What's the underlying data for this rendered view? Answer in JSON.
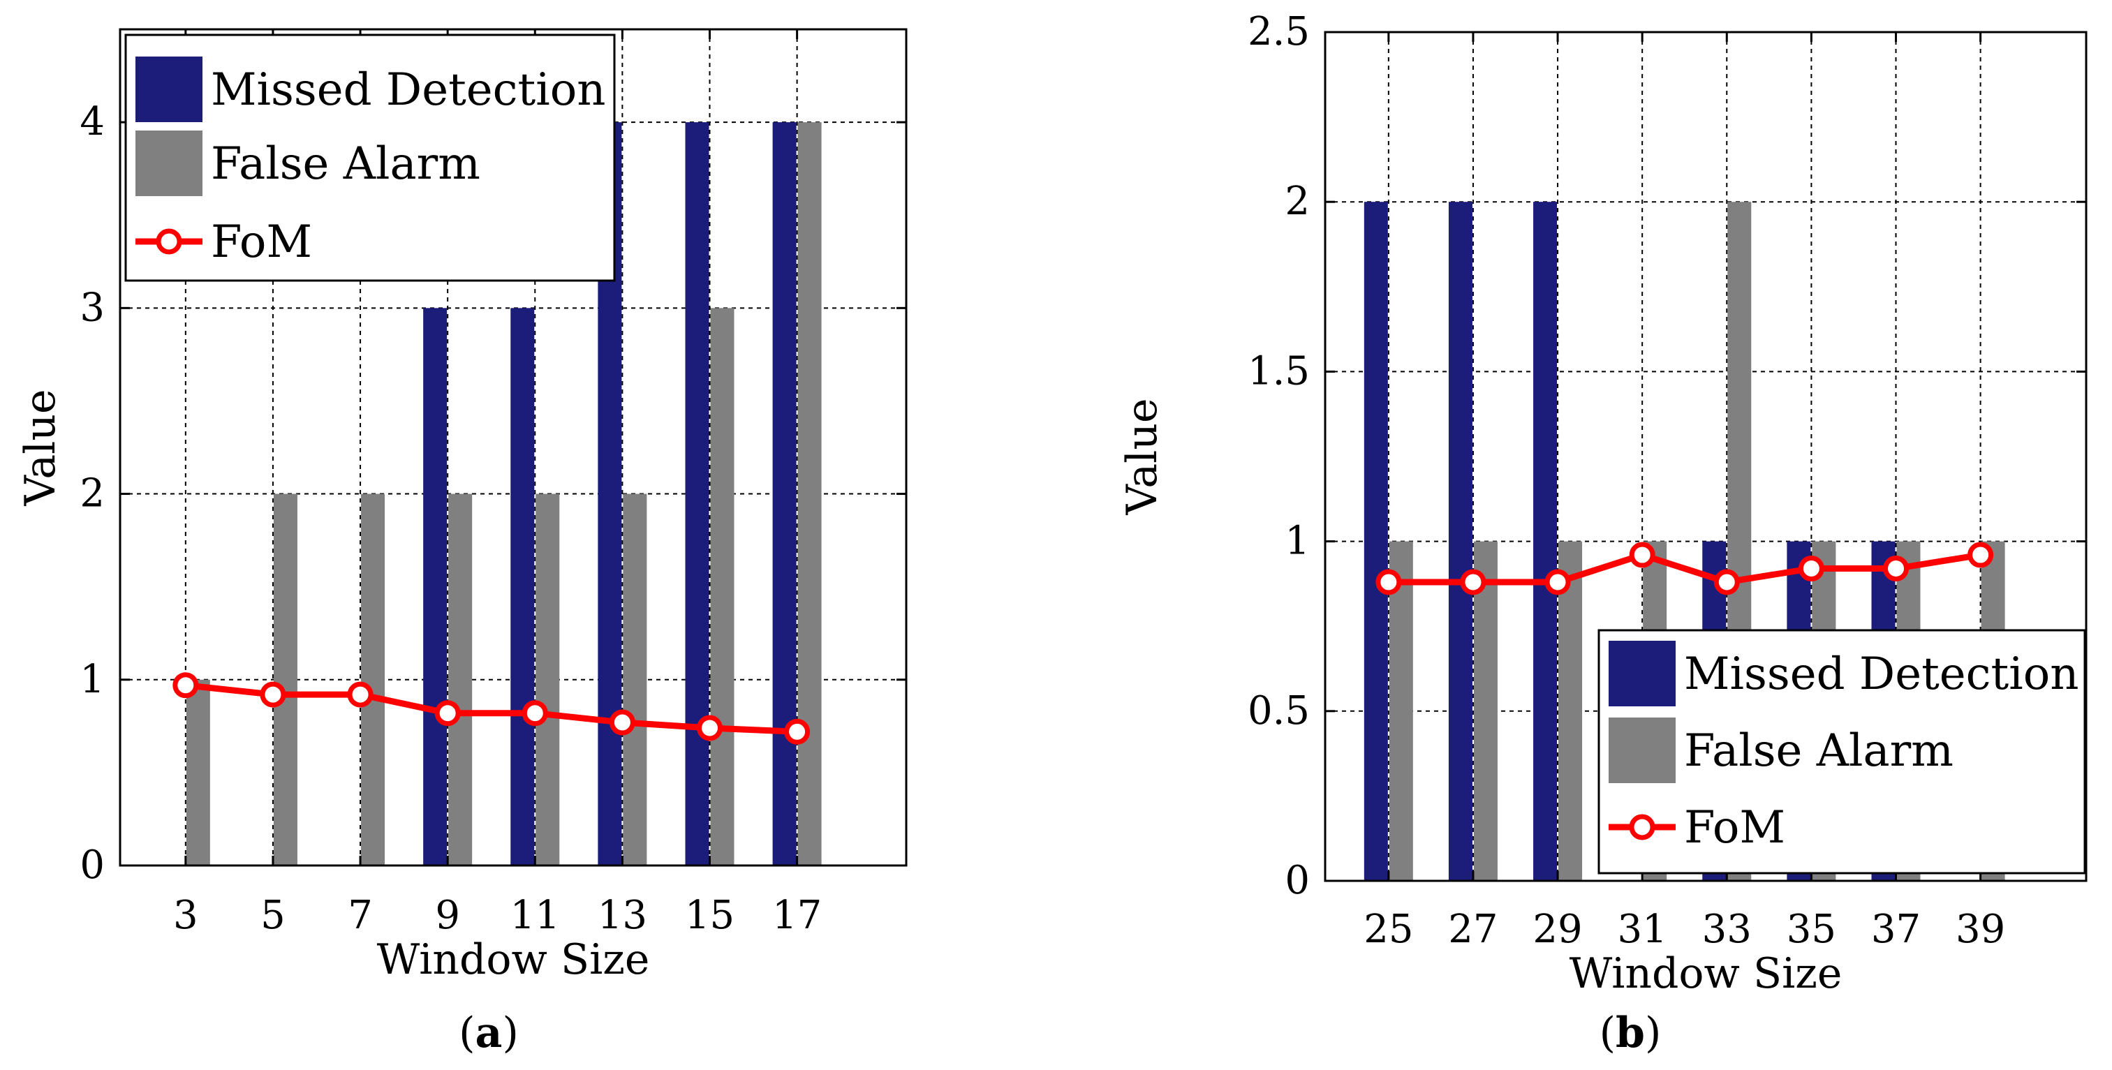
{
  "chart_data": [
    {
      "type": "bar",
      "panel": "a",
      "caption_letter": "a",
      "xlabel": "Window Size",
      "ylabel": "Value",
      "categories": [
        "3",
        "5",
        "7",
        "9",
        "11",
        "13",
        "15",
        "17"
      ],
      "ylim": [
        0,
        4.5
      ],
      "yticks": [
        "0",
        "1",
        "2",
        "3",
        "4"
      ],
      "ytick_values": [
        0,
        1,
        2,
        3,
        4
      ],
      "grid": true,
      "legend_position": "top-left",
      "series": [
        {
          "name": "Missed Detection",
          "kind": "bar",
          "color": "#1c1c7a",
          "values": [
            0,
            0,
            0,
            3,
            3,
            4,
            4,
            4
          ]
        },
        {
          "name": "False Alarm",
          "kind": "bar",
          "color": "#808080",
          "values": [
            1,
            2,
            2,
            2,
            2,
            2,
            3,
            4
          ]
        },
        {
          "name": "FoM",
          "kind": "line",
          "color": "#ff0000",
          "values": [
            0.97,
            0.92,
            0.92,
            0.82,
            0.82,
            0.77,
            0.74,
            0.72
          ]
        }
      ]
    },
    {
      "type": "bar",
      "panel": "b",
      "caption_letter": "b",
      "xlabel": "Window Size",
      "ylabel": "Value",
      "categories": [
        "25",
        "27",
        "29",
        "31",
        "33",
        "35",
        "37",
        "39"
      ],
      "ylim": [
        0,
        2.5
      ],
      "yticks": [
        "0",
        "0.5",
        "1",
        "1.5",
        "2",
        "2.5"
      ],
      "ytick_values": [
        0,
        0.5,
        1,
        1.5,
        2,
        2.5
      ],
      "grid": true,
      "legend_position": "bottom-right",
      "series": [
        {
          "name": "Missed Detection",
          "kind": "bar",
          "color": "#1c1c7a",
          "values": [
            2,
            2,
            2,
            0,
            1,
            1,
            1,
            0
          ]
        },
        {
          "name": "False Alarm",
          "kind": "bar",
          "color": "#808080",
          "values": [
            1,
            1,
            1,
            1,
            2,
            1,
            1,
            1
          ]
        },
        {
          "name": "FoM",
          "kind": "line",
          "color": "#ff0000",
          "values": [
            0.88,
            0.88,
            0.88,
            0.96,
            0.88,
            0.92,
            0.92,
            0.96
          ]
        }
      ]
    }
  ]
}
